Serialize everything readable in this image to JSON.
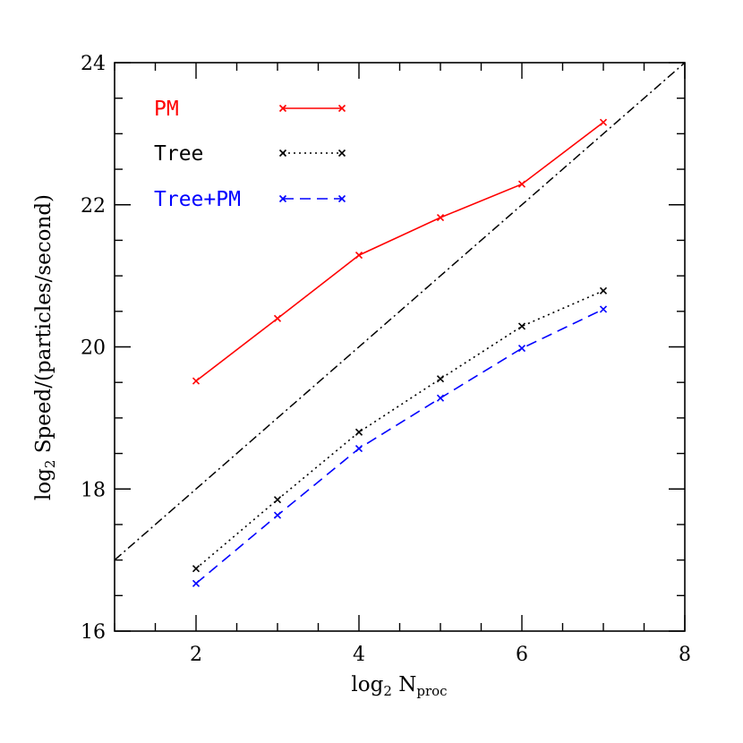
{
  "chart_data": {
    "type": "line",
    "title": "",
    "xlabel": {
      "main": "log",
      "sub1": "2",
      "mid": " N",
      "sub2": "proc"
    },
    "ylabel": {
      "main": "log",
      "sub1": "2",
      "rest": " Speed/(particles/second)"
    },
    "xlim": [
      1,
      8
    ],
    "ylim": [
      16,
      24
    ],
    "x_major_ticks": [
      2,
      4,
      6,
      8
    ],
    "x_tick_labels": [
      "2",
      "4",
      "6",
      "8"
    ],
    "x_minor_step": 0.5,
    "y_major_ticks": [
      16,
      18,
      20,
      22,
      24
    ],
    "y_tick_labels": [
      "16",
      "18",
      "20",
      "22",
      "24"
    ],
    "y_minor_step": 0.5,
    "grid": false,
    "legend_position": "top-left",
    "series": [
      {
        "name": "PM",
        "color": "#ff0000",
        "style": "solid",
        "x": [
          2,
          3,
          4,
          5,
          6,
          7
        ],
        "y": [
          19.52,
          20.4,
          21.29,
          21.82,
          22.29,
          23.16
        ]
      },
      {
        "name": "Tree",
        "color": "#000000",
        "style": "dotted",
        "x": [
          2,
          3,
          4,
          5,
          6,
          7
        ],
        "y": [
          16.88,
          17.85,
          18.8,
          19.55,
          20.29,
          20.79
        ]
      },
      {
        "name": "Tree+PM",
        "color": "#0000ff",
        "style": "dashed",
        "x": [
          2,
          3,
          4,
          5,
          6,
          7
        ],
        "y": [
          16.67,
          17.63,
          18.57,
          19.28,
          19.98,
          20.53
        ]
      }
    ],
    "reference_line": {
      "color": "#000000",
      "style": "dashdot",
      "x": [
        1,
        8
      ],
      "y": [
        17,
        24
      ]
    }
  }
}
